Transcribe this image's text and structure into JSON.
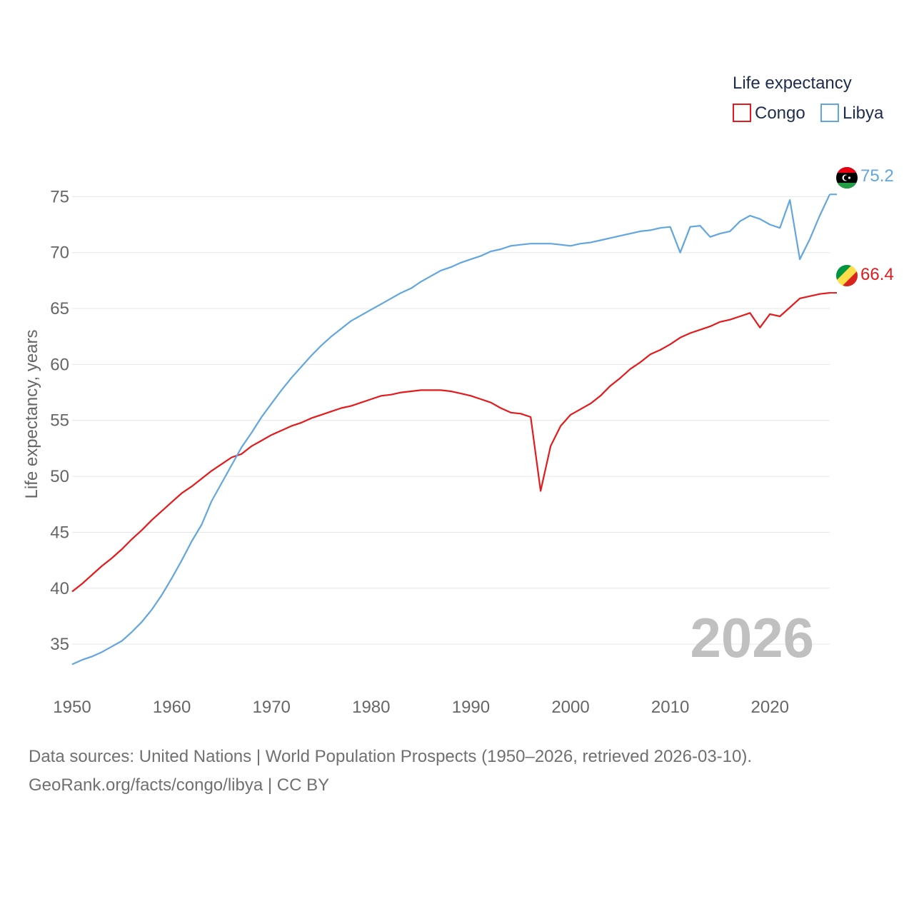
{
  "chart_data": {
    "type": "line",
    "title": "",
    "ylabel": "Life expectancy, years",
    "xlabel": "",
    "xlim": [
      1950,
      2026
    ],
    "ylim": [
      31.5,
      77
    ],
    "yticks": [
      35,
      40,
      45,
      50,
      55,
      60,
      65,
      70,
      75
    ],
    "xticks": [
      1950,
      1960,
      1970,
      1980,
      1990,
      2000,
      2010,
      2020
    ],
    "grid": true,
    "legend_title": "Life expectancy",
    "legend_position": "top-right",
    "current_year": "2026",
    "series": [
      {
        "name": "Congo",
        "color": "#e41a1c",
        "end_label": "66.4",
        "flag": "congo-flag",
        "x": [
          1950,
          1951,
          1952,
          1953,
          1954,
          1955,
          1956,
          1957,
          1958,
          1959,
          1960,
          1961,
          1962,
          1963,
          1964,
          1965,
          1966,
          1967,
          1968,
          1969,
          1970,
          1971,
          1972,
          1973,
          1974,
          1975,
          1976,
          1977,
          1978,
          1979,
          1980,
          1981,
          1982,
          1983,
          1984,
          1985,
          1986,
          1987,
          1988,
          1989,
          1990,
          1991,
          1992,
          1993,
          1994,
          1995,
          1996,
          1997,
          1998,
          1999,
          2000,
          2001,
          2002,
          2003,
          2004,
          2005,
          2006,
          2007,
          2008,
          2009,
          2010,
          2011,
          2012,
          2013,
          2014,
          2015,
          2016,
          2017,
          2018,
          2019,
          2020,
          2021,
          2022,
          2023,
          2024,
          2025,
          2026
        ],
        "values": [
          39.7,
          40.4,
          41.2,
          42.0,
          42.7,
          43.5,
          44.4,
          45.2,
          46.1,
          46.9,
          47.7,
          48.5,
          49.1,
          49.8,
          50.5,
          51.1,
          51.7,
          52.0,
          52.7,
          53.2,
          53.7,
          54.1,
          54.5,
          54.8,
          55.2,
          55.5,
          55.8,
          56.1,
          56.3,
          56.6,
          56.9,
          57.2,
          57.3,
          57.5,
          57.6,
          57.7,
          57.7,
          57.7,
          57.6,
          57.4,
          57.2,
          56.9,
          56.6,
          56.1,
          55.7,
          55.6,
          55.3,
          48.7,
          52.7,
          54.5,
          55.5,
          56.0,
          56.5,
          57.2,
          58.1,
          58.8,
          59.6,
          60.2,
          60.9,
          61.3,
          61.8,
          62.4,
          62.8,
          63.1,
          63.4,
          63.8,
          64.0,
          64.3,
          64.6,
          63.3,
          64.5,
          64.3,
          65.1,
          65.9,
          66.1,
          66.3,
          66.4
        ]
      },
      {
        "name": "Libya",
        "color": "#62a6e0",
        "end_label": "75.2",
        "flag": "libya-flag",
        "x": [
          1950,
          1951,
          1952,
          1953,
          1954,
          1955,
          1956,
          1957,
          1958,
          1959,
          1960,
          1961,
          1962,
          1963,
          1964,
          1965,
          1966,
          1967,
          1968,
          1969,
          1970,
          1971,
          1972,
          1973,
          1974,
          1975,
          1976,
          1977,
          1978,
          1979,
          1980,
          1981,
          1982,
          1983,
          1984,
          1985,
          1986,
          1987,
          1988,
          1989,
          1990,
          1991,
          1992,
          1993,
          1994,
          1995,
          1996,
          1997,
          1998,
          1999,
          2000,
          2001,
          2002,
          2003,
          2004,
          2005,
          2006,
          2007,
          2008,
          2009,
          2010,
          2011,
          2012,
          2013,
          2014,
          2015,
          2016,
          2017,
          2018,
          2019,
          2020,
          2021,
          2022,
          2023,
          2024,
          2025,
          2026
        ],
        "values": [
          33.2,
          33.6,
          33.9,
          34.3,
          34.8,
          35.3,
          36.1,
          37.0,
          38.1,
          39.4,
          40.9,
          42.5,
          44.2,
          45.7,
          47.8,
          49.4,
          51.0,
          52.6,
          53.9,
          55.3,
          56.5,
          57.7,
          58.8,
          59.8,
          60.8,
          61.7,
          62.5,
          63.2,
          63.9,
          64.4,
          64.9,
          65.4,
          65.9,
          66.4,
          66.8,
          67.4,
          67.9,
          68.4,
          68.7,
          69.1,
          69.4,
          69.7,
          70.1,
          70.3,
          70.6,
          70.7,
          70.8,
          70.8,
          70.8,
          70.7,
          70.6,
          70.8,
          70.9,
          71.1,
          71.3,
          71.5,
          71.7,
          71.9,
          72.0,
          72.2,
          72.3,
          70.0,
          72.3,
          72.4,
          71.4,
          71.7,
          71.9,
          72.8,
          73.3,
          73.0,
          72.5,
          72.2,
          74.7,
          69.4,
          71.2,
          73.3,
          75.2
        ]
      }
    ]
  },
  "footer": {
    "source_line": "Data sources: United Nations | World Population Prospects (1950–2026, retrieved 2026-03-10).",
    "attribution": "GeoRank.org/facts/congo/libya | CC BY"
  }
}
